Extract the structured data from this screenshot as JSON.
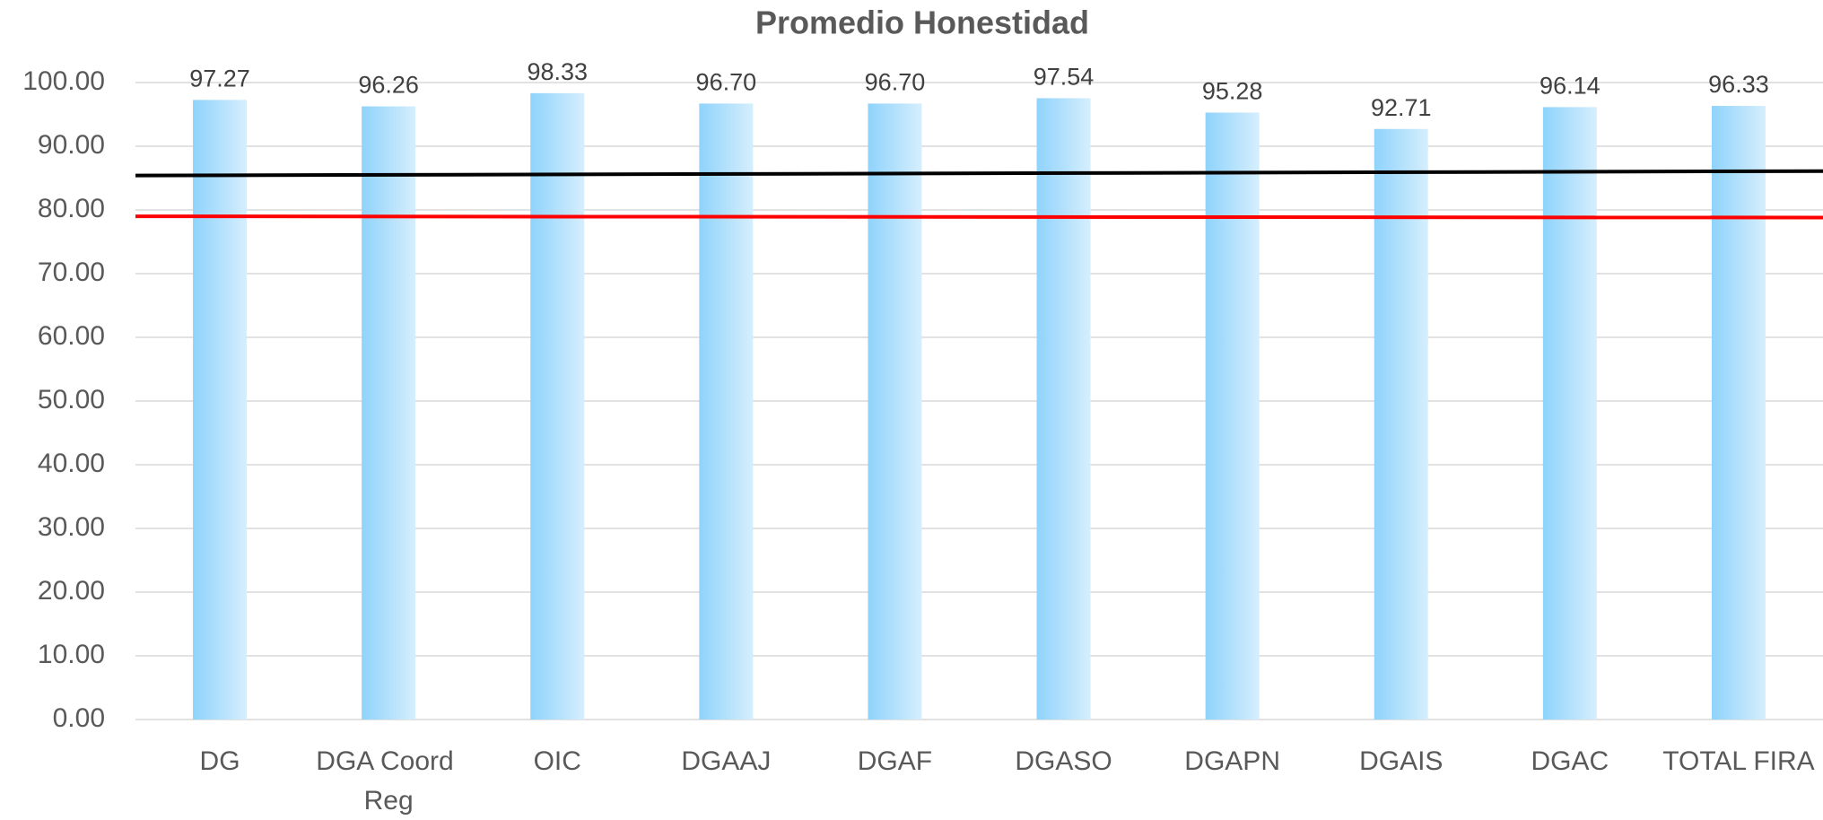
{
  "chart_data": {
    "type": "bar",
    "title": "Promedio Honestidad",
    "categories": [
      "DG",
      "DGA Coord Reg",
      "OIC",
      "DGAAJ",
      "DGAF",
      "DGASO",
      "DGAPN",
      "DGAIS",
      "DGAC",
      "TOTAL FIRA"
    ],
    "values": [
      97.27,
      96.26,
      98.33,
      96.7,
      96.7,
      97.54,
      95.28,
      92.71,
      96.14,
      96.33
    ],
    "value_labels": [
      "97.27",
      "96.26",
      "98.33",
      "96.70",
      "96.70",
      "97.54",
      "95.28",
      "92.71",
      "96.14",
      "96.33"
    ],
    "color": "#8fd3fb",
    "ylim": [
      0,
      100
    ],
    "yticks": [
      {
        "value": 0,
        "label": "0.00"
      },
      {
        "value": 10,
        "label": "10.00"
      },
      {
        "value": 20,
        "label": "20.00"
      },
      {
        "value": 30,
        "label": "30.00"
      },
      {
        "value": 40,
        "label": "40.00"
      },
      {
        "value": 50,
        "label": "50.00"
      },
      {
        "value": 60,
        "label": "60.00"
      },
      {
        "value": 70,
        "label": "70.00"
      },
      {
        "value": 80,
        "label": "80.00"
      },
      {
        "value": 90,
        "label": "90.00"
      },
      {
        "value": 100,
        "label": "100.00"
      }
    ],
    "grid": true,
    "lines": [
      {
        "color": "#000000",
        "values": [
          85.4,
          86.1
        ]
      },
      {
        "color": "#ff0000",
        "values": [
          79.0,
          78.8
        ]
      }
    ]
  }
}
